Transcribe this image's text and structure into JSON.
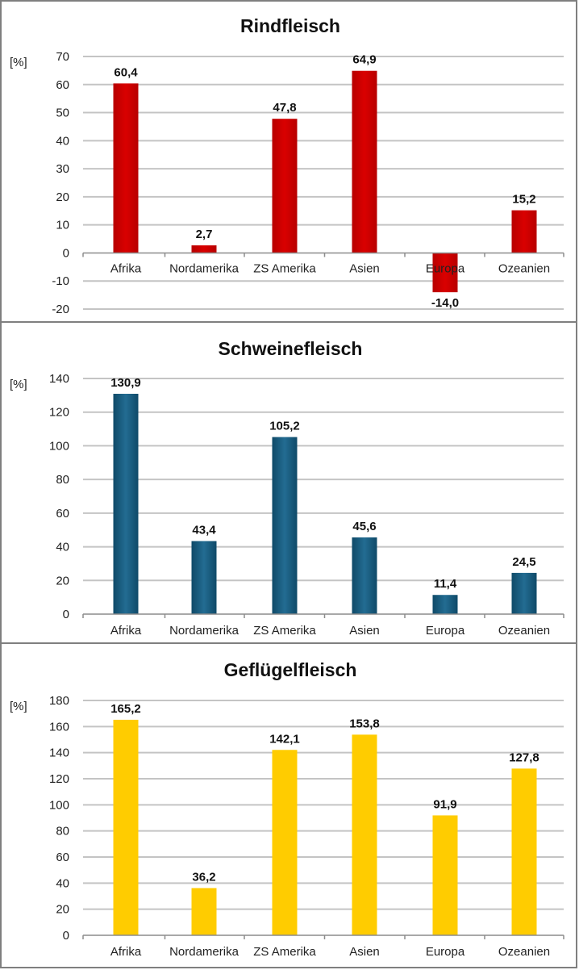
{
  "chart_data": [
    {
      "type": "bar",
      "title": "Rindfleisch",
      "ylabel": "[%]",
      "xlabel": "",
      "categories": [
        "Afrika",
        "Nordamerika",
        "ZS Amerika",
        "Asien",
        "Europa",
        "Ozeanien"
      ],
      "values": [
        60.4,
        2.7,
        47.8,
        64.9,
        -14.0,
        15.2
      ],
      "value_labels": [
        "60,4",
        "2,7",
        "47,8",
        "64,9",
        "-14,0",
        "15,2"
      ],
      "ylim": [
        -20,
        70
      ],
      "yticks": [
        70,
        60,
        50,
        40,
        30,
        20,
        10,
        0,
        -10,
        -20
      ],
      "grid": true,
      "legend": "none",
      "color": "#d90000",
      "color_dark": "#b80000"
    },
    {
      "type": "bar",
      "title": "Schweinefleisch",
      "ylabel": "[%]",
      "xlabel": "",
      "categories": [
        "Afrika",
        "Nordamerika",
        "ZS Amerika",
        "Asien",
        "Europa",
        "Ozeanien"
      ],
      "values": [
        130.9,
        43.4,
        105.2,
        45.6,
        11.4,
        24.5
      ],
      "value_labels": [
        "130,9",
        "43,4",
        "105,2",
        "45,6",
        "11,4",
        "24,5"
      ],
      "ylim": [
        0,
        140
      ],
      "yticks": [
        140,
        120,
        100,
        80,
        60,
        40,
        20,
        0
      ],
      "grid": true,
      "legend": "none",
      "color": "#236c92",
      "color_dark": "#0f4a68"
    },
    {
      "type": "bar",
      "title": "Geflügelfleisch",
      "ylabel": "[%]",
      "xlabel": "",
      "categories": [
        "Afrika",
        "Nordamerika",
        "ZS Amerika",
        "Asien",
        "Europa",
        "Ozeanien"
      ],
      "values": [
        165.2,
        36.2,
        142.1,
        153.8,
        91.9,
        127.8
      ],
      "value_labels": [
        "165,2",
        "36,2",
        "142,1",
        "153,8",
        "91,9",
        "127,8"
      ],
      "ylim": [
        0,
        180
      ],
      "yticks": [
        180,
        160,
        140,
        120,
        100,
        80,
        60,
        40,
        20,
        0
      ],
      "grid": true,
      "legend": "none",
      "color": "#ffcc00",
      "color_dark": "#ffcc00"
    }
  ]
}
